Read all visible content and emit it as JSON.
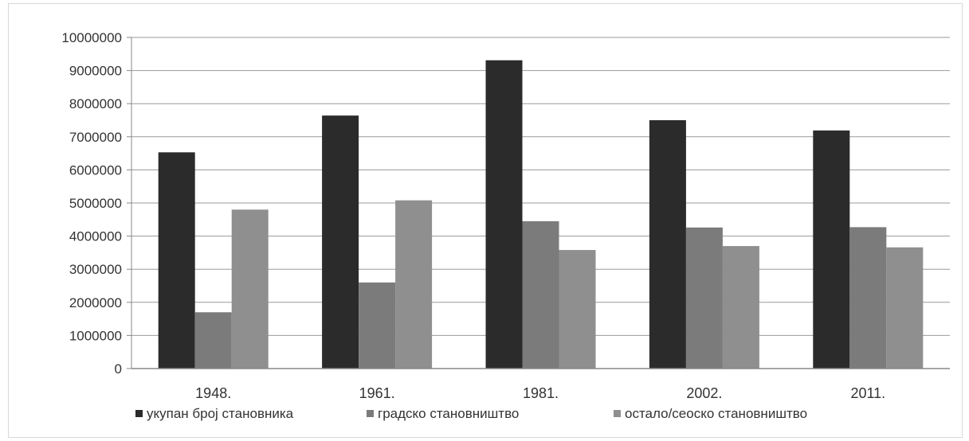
{
  "chart_data": {
    "type": "bar",
    "title": "",
    "xlabel": "",
    "ylabel": "",
    "categories": [
      "1948.",
      "1961.",
      "1981.",
      "2002.",
      "2011."
    ],
    "ylim": [
      0,
      10000000
    ],
    "yticks": [
      "0",
      "1000000",
      "2000000",
      "3000000",
      "4000000",
      "5000000",
      "6000000",
      "7000000",
      "8000000",
      "9000000",
      "10000000"
    ],
    "grid": true,
    "legend_position": "bottom",
    "series": [
      {
        "name": "укупан број становника",
        "color": "#2b2b2b",
        "values": [
          6530000,
          7640000,
          9310000,
          7500000,
          7190000
        ]
      },
      {
        "name": "градско становништво",
        "color": "#7b7b7b",
        "values": [
          1700000,
          2600000,
          4450000,
          4260000,
          4270000
        ]
      },
      {
        "name": "остало/сеоско становништво",
        "color": "#8f8f8f",
        "values": [
          4800000,
          5080000,
          3580000,
          3700000,
          3660000
        ]
      }
    ]
  }
}
